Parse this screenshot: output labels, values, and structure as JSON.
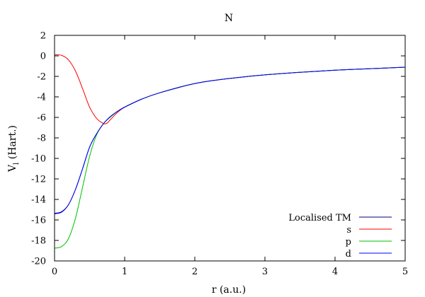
{
  "chart_data": {
    "type": "line",
    "title": "N",
    "xlabel": "r (a.u.)",
    "ylabel_main": "V",
    "ylabel_sub": "l",
    "ylabel_unit": " (Hart.)",
    "xlim": [
      0,
      5
    ],
    "ylim": [
      -20,
      2
    ],
    "xticks": [
      0,
      1,
      2,
      3,
      4,
      5
    ],
    "yticks": [
      2,
      0,
      -2,
      -4,
      -6,
      -8,
      -10,
      -12,
      -14,
      -16,
      -18,
      -20
    ],
    "legend_position": "bottom-right",
    "series": [
      {
        "name": "Localised TM",
        "color": "#000080",
        "x": [
          0,
          0.1,
          0.2,
          0.3,
          0.4,
          0.5,
          0.6,
          0.7,
          0.8,
          0.9,
          1.0,
          1.25,
          1.5,
          2.0,
          2.5,
          3.0,
          3.5,
          4.0,
          4.5,
          5.0
        ],
        "y": [
          -15.35,
          -15.2,
          -14.5,
          -13.0,
          -11.0,
          -8.9,
          -7.6,
          -6.6,
          -5.9,
          -5.4,
          -5.0,
          -4.2,
          -3.6,
          -2.7,
          -2.2,
          -1.85,
          -1.6,
          -1.4,
          -1.25,
          -1.1
        ]
      },
      {
        "name": "s",
        "color": "#ff0000",
        "x": [
          0,
          0.1,
          0.2,
          0.3,
          0.4,
          0.5,
          0.6,
          0.7,
          0.75,
          0.8,
          0.9,
          1.0,
          1.25,
          1.5,
          2.0,
          2.5,
          3.0,
          3.5,
          4.0,
          4.5,
          5.0
        ],
        "y": [
          0.1,
          0.05,
          -0.4,
          -1.5,
          -3.2,
          -5.0,
          -6.1,
          -6.6,
          -6.55,
          -6.2,
          -5.5,
          -5.0,
          -4.2,
          -3.6,
          -2.7,
          -2.2,
          -1.85,
          -1.6,
          -1.4,
          -1.25,
          -1.1
        ]
      },
      {
        "name": "p",
        "color": "#00c000",
        "x": [
          0,
          0.1,
          0.2,
          0.3,
          0.4,
          0.5,
          0.6,
          0.7,
          0.8,
          0.9,
          1.0,
          1.25,
          1.5,
          2.0,
          2.5,
          3.0,
          3.5,
          4.0,
          4.5,
          5.0
        ],
        "y": [
          -18.75,
          -18.6,
          -17.8,
          -15.8,
          -12.8,
          -9.8,
          -7.7,
          -6.6,
          -5.95,
          -5.4,
          -5.0,
          -4.2,
          -3.6,
          -2.7,
          -2.2,
          -1.85,
          -1.6,
          -1.4,
          -1.25,
          -1.1
        ]
      },
      {
        "name": "d",
        "color": "#0000ff",
        "x": [
          0,
          0.1,
          0.2,
          0.3,
          0.4,
          0.5,
          0.6,
          0.7,
          0.8,
          0.9,
          1.0,
          1.25,
          1.5,
          2.0,
          2.5,
          3.0,
          3.5,
          4.0,
          4.5,
          5.0
        ],
        "y": [
          -15.4,
          -15.25,
          -14.5,
          -13.0,
          -11.0,
          -8.9,
          -7.6,
          -6.6,
          -5.9,
          -5.4,
          -5.0,
          -4.2,
          -3.6,
          -2.7,
          -2.2,
          -1.85,
          -1.6,
          -1.4,
          -1.25,
          -1.1
        ]
      }
    ]
  }
}
